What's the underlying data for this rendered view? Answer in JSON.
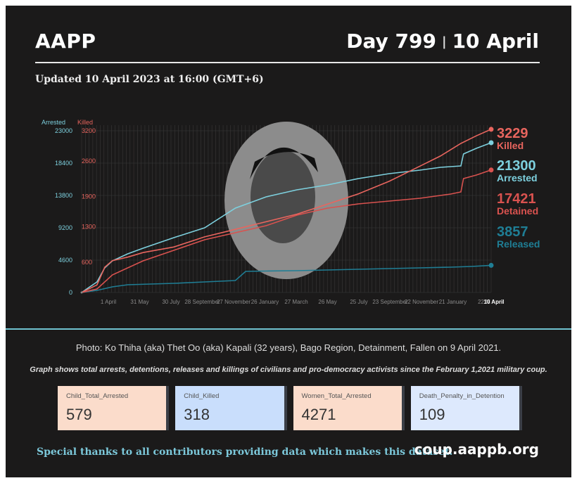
{
  "header": {
    "org": "AAPP",
    "day": "Day 799",
    "separator": "|",
    "date": "10 April",
    "updated": "Updated 10 April 2023 at 16:00 (GMT+6)"
  },
  "colors": {
    "arrested": "#7dd0de",
    "killed": "#e8655e",
    "detained": "#d9524f",
    "released": "#1f7e95",
    "background": "#1b1a1a"
  },
  "chart_data": {
    "type": "line",
    "left_axis": {
      "label": "Arrested",
      "ticks": [
        "0",
        "4600",
        "9200",
        "13800",
        "18400",
        "23000"
      ],
      "ylim": [
        0,
        23000
      ]
    },
    "right_axis": {
      "label": "Killed",
      "ticks": [
        "600",
        "1300",
        "1900",
        "2600",
        "3200"
      ],
      "ylim": [
        0,
        3200
      ]
    },
    "x_tick_labels": [
      "1 April",
      "31 May",
      "30 July",
      "28 September",
      "27 November",
      "26 January",
      "27 March",
      "26 May",
      "25 July",
      "23 September",
      "22 November",
      "21 January",
      "22 M",
      "10 April"
    ],
    "x_range": [
      0,
      799
    ],
    "x_unit": "day",
    "series": [
      {
        "name": "Killed",
        "value_label": "3229",
        "axis": "right",
        "x": [
          0,
          30,
          45,
          60,
          90,
          120,
          180,
          240,
          300,
          360,
          420,
          480,
          540,
          600,
          660,
          700,
          740,
          770,
          799
        ],
        "y": [
          0,
          150,
          500,
          630,
          700,
          790,
          900,
          1100,
          1250,
          1400,
          1550,
          1750,
          1950,
          2200,
          2500,
          2700,
          2950,
          3100,
          3229
        ]
      },
      {
        "name": "Arrested",
        "value_label": "21300",
        "axis": "left",
        "x": [
          0,
          30,
          45,
          60,
          90,
          120,
          180,
          240,
          300,
          360,
          420,
          480,
          540,
          600,
          660,
          700,
          740,
          745,
          770,
          799
        ],
        "y": [
          0,
          1500,
          3500,
          4500,
          5500,
          6300,
          7800,
          9200,
          12000,
          13600,
          14600,
          15300,
          16200,
          16900,
          17400,
          17800,
          18000,
          19700,
          20500,
          21300
        ]
      },
      {
        "name": "Detained",
        "value_label": "17421",
        "axis": "left",
        "x": [
          0,
          30,
          60,
          120,
          180,
          240,
          300,
          360,
          420,
          480,
          540,
          600,
          660,
          700,
          720,
          740,
          745,
          770,
          799
        ],
        "y": [
          0,
          500,
          2500,
          4500,
          6000,
          7500,
          8500,
          9500,
          11000,
          12000,
          12600,
          13000,
          13400,
          13800,
          14000,
          14300,
          16200,
          16700,
          17421
        ]
      },
      {
        "name": "Released",
        "value_label": "3857",
        "axis": "left",
        "x": [
          0,
          30,
          60,
          90,
          180,
          240,
          300,
          320,
          360,
          420,
          480,
          540,
          600,
          660,
          720,
          760,
          799
        ],
        "y": [
          0,
          300,
          800,
          1100,
          1300,
          1500,
          1700,
          3000,
          3050,
          3100,
          3200,
          3300,
          3400,
          3500,
          3600,
          3700,
          3857
        ]
      }
    ]
  },
  "photo_caption": "Photo: Ko Thiha (aka) Thet Oo (aka) Kapali (32 years), Bago Region, Detainment, Fallen on 9 April 2021.",
  "note": "Graph shows total arrests, detentions, releases and killings of civilians and pro-democracy activists since the February 1,2021 military coup.",
  "stats": [
    {
      "label": "Child_Total_Arrested",
      "value": "579",
      "theme": "peach"
    },
    {
      "label": "Child_Killed",
      "value": "318",
      "theme": "blue"
    },
    {
      "label": "Women_Total_Arrested",
      "value": "4271",
      "theme": "peach"
    },
    {
      "label": "Death_Penalty_in_Detention",
      "value": "109",
      "theme": "lightblue"
    }
  ],
  "footer": {
    "thanks": "Special thanks to all contributors providing data which makes this dataset.",
    "site": "coup.aappb.org"
  }
}
